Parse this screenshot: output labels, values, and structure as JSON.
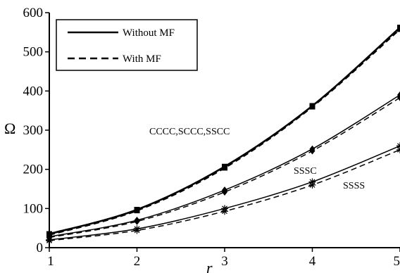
{
  "chart_data": {
    "type": "line",
    "xlabel": "r",
    "ylabel": "Ω",
    "xlim": [
      1,
      5
    ],
    "ylim": [
      0,
      600
    ],
    "x_ticks": [
      1,
      2,
      3,
      4,
      5
    ],
    "y_ticks": [
      0,
      100,
      200,
      300,
      400,
      500,
      600
    ],
    "grid": false,
    "legend_position": "top-left",
    "legend": [
      {
        "label": "Without MF",
        "style": "solid"
      },
      {
        "label": "With MF",
        "style": "dashed"
      }
    ],
    "annotations": [
      {
        "text": "CCCC,SCCC,SSCC"
      },
      {
        "text": "SSSC"
      },
      {
        "text": "SSSS"
      }
    ],
    "series": [
      {
        "group": "CCCC,SCCC,SSCC",
        "condition": "Without MF",
        "marker": "square",
        "x": [
          1,
          2,
          3,
          4,
          5
        ],
        "y": [
          35,
          97,
          207,
          362,
          562
        ]
      },
      {
        "group": "CCCC,SCCC,SSCC",
        "condition": "With MF",
        "marker": "square",
        "x": [
          1,
          2,
          3,
          4,
          5
        ],
        "y": [
          33,
          95,
          204,
          360,
          558
        ]
      },
      {
        "group": "SSSC",
        "condition": "Without MF",
        "marker": "diamond",
        "x": [
          1,
          2,
          3,
          4,
          5
        ],
        "y": [
          28,
          70,
          147,
          252,
          390
        ]
      },
      {
        "group": "SSSC",
        "condition": "With MF",
        "marker": "diamond",
        "x": [
          1,
          2,
          3,
          4,
          5
        ],
        "y": [
          26,
          67,
          142,
          247,
          383
        ]
      },
      {
        "group": "SSSS",
        "condition": "Without MF",
        "marker": "asterisk",
        "x": [
          1,
          2,
          3,
          4,
          5
        ],
        "y": [
          20,
          48,
          100,
          168,
          260
        ]
      },
      {
        "group": "SSSS",
        "condition": "With MF",
        "marker": "asterisk",
        "x": [
          1,
          2,
          3,
          4,
          5
        ],
        "y": [
          18,
          44,
          93,
          160,
          250
        ]
      }
    ]
  }
}
